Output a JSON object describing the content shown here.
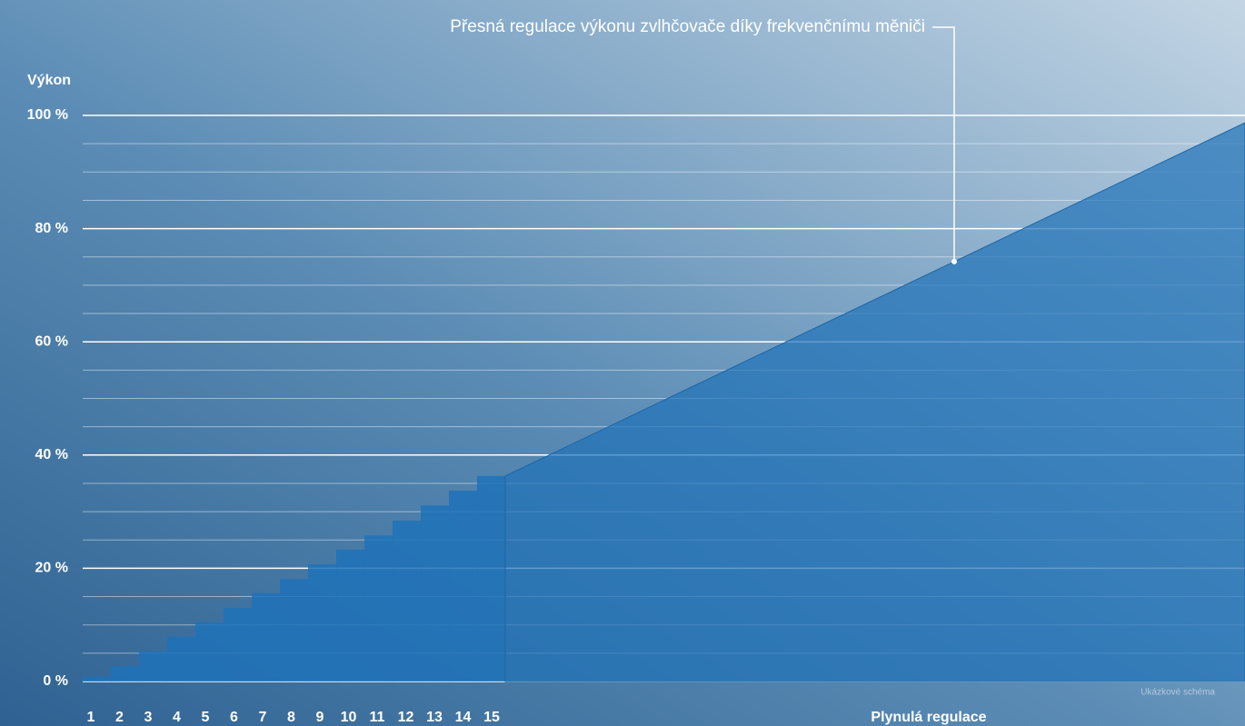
{
  "chart_data": {
    "type": "step-area",
    "y_label": "Výkon",
    "annotation": "Přesná regulace výkonu zvlhčovače díky frekvenčnímu měniči",
    "note": "Ukázkové schéma",
    "categories": [
      "1",
      "2",
      "3",
      "4",
      "5",
      "6",
      "7",
      "8",
      "9",
      "10",
      "11",
      "12",
      "13",
      "14",
      "15"
    ],
    "values": [
      0.8,
      2.7,
      5.3,
      7.9,
      10.4,
      13,
      15.6,
      18.1,
      20.7,
      23.3,
      25.8,
      28.4,
      31.1,
      33.7,
      36.3
    ],
    "continuous": {
      "name": "Plynulá regulace",
      "values": [
        36.3,
        98.7
      ]
    },
    "color": "#1f72b8",
    "ylim": [
      0,
      100
    ],
    "yticks": [
      {
        "value": 0,
        "label": "0 %"
      },
      {
        "value": 20,
        "label": "20 %"
      },
      {
        "value": 40,
        "label": "40 %"
      },
      {
        "value": 60,
        "label": "60 %"
      },
      {
        "value": 80,
        "label": "80 %"
      },
      {
        "value": 100,
        "label": "100 %"
      }
    ],
    "minor_yticks": [
      5,
      10,
      15,
      25,
      30,
      35,
      45,
      50,
      55,
      65,
      70,
      75,
      85,
      90,
      95
    ],
    "grid": true
  }
}
